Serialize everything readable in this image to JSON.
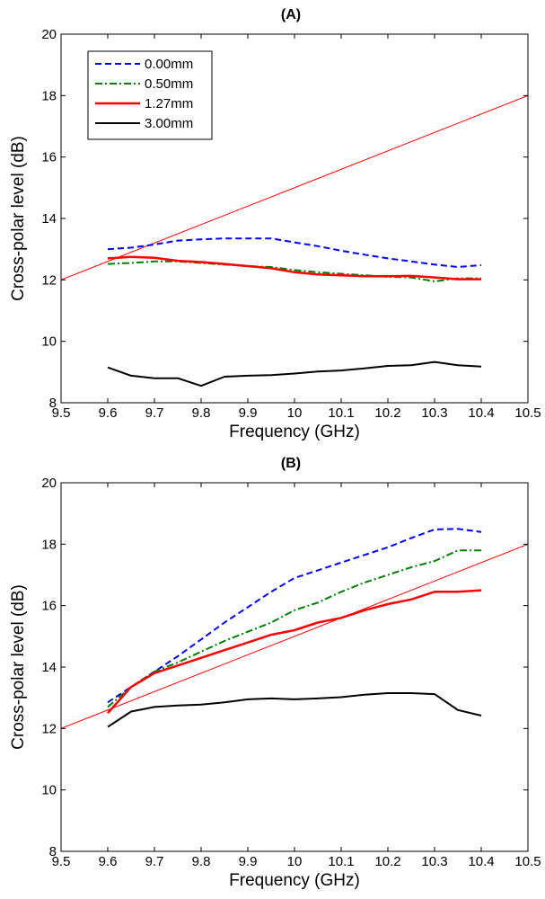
{
  "chart_data": [
    {
      "type": "line",
      "title": "(A)",
      "xlabel": "Frequency (GHz)",
      "ylabel": "Cross-polar level (dB)",
      "xlim": [
        9.5,
        10.5
      ],
      "ylim": [
        8,
        20
      ],
      "xticks": [
        "9.5",
        "9.6",
        "9.7",
        "9.8",
        "9.9",
        "10",
        "10.1",
        "10.2",
        "10.3",
        "10.4",
        "10.5"
      ],
      "yticks": [
        "8",
        "10",
        "12",
        "14",
        "16",
        "18",
        "20"
      ],
      "grid": false,
      "legend_position": "top-left",
      "x": [
        9.6,
        9.65,
        9.7,
        9.75,
        9.8,
        9.85,
        9.9,
        9.95,
        10.0,
        10.05,
        10.1,
        10.15,
        10.2,
        10.25,
        10.3,
        10.35,
        10.4
      ],
      "series": [
        {
          "name": "0.00mm",
          "color": "#0000ff",
          "dash": "dashed",
          "values": [
            13.0,
            13.05,
            13.15,
            13.28,
            13.32,
            13.35,
            13.35,
            13.35,
            13.22,
            13.1,
            12.95,
            12.82,
            12.7,
            12.6,
            12.5,
            12.42,
            12.48
          ]
        },
        {
          "name": "0.50mm",
          "color": "#008000",
          "dash": "dashdot",
          "values": [
            12.52,
            12.55,
            12.6,
            12.6,
            12.55,
            12.5,
            12.45,
            12.42,
            12.32,
            12.25,
            12.2,
            12.15,
            12.1,
            12.08,
            11.95,
            12.05,
            12.05
          ]
        },
        {
          "name": "1.27mm",
          "color": "#ff0000",
          "dash": "solid",
          "values": [
            12.7,
            12.75,
            12.72,
            12.62,
            12.58,
            12.52,
            12.45,
            12.38,
            12.25,
            12.18,
            12.15,
            12.12,
            12.12,
            12.13,
            12.08,
            12.02,
            12.02
          ]
        },
        {
          "name": "3.00mm",
          "color": "#000000",
          "dash": "solid",
          "values": [
            9.15,
            8.88,
            8.8,
            8.8,
            8.55,
            8.85,
            8.88,
            8.9,
            8.95,
            9.02,
            9.05,
            9.12,
            9.2,
            9.22,
            9.33,
            9.22,
            9.18
          ]
        }
      ],
      "reference_line": {
        "color": "#ff0000",
        "x": [
          9.5,
          10.5
        ],
        "y": [
          12,
          18
        ]
      }
    },
    {
      "type": "line",
      "title": "(B)",
      "xlabel": "Frequency (GHz)",
      "ylabel": "Cross-polar level (dB)",
      "xlim": [
        9.5,
        10.5
      ],
      "ylim": [
        8,
        20
      ],
      "xticks": [
        "9.5",
        "9.6",
        "9.7",
        "9.8",
        "9.9",
        "10",
        "10.1",
        "10.2",
        "10.3",
        "10.4",
        "10.5"
      ],
      "yticks": [
        "8",
        "10",
        "12",
        "14",
        "16",
        "18",
        "20"
      ],
      "grid": false,
      "x": [
        9.6,
        9.65,
        9.7,
        9.75,
        9.8,
        9.85,
        9.9,
        9.95,
        10.0,
        10.05,
        10.1,
        10.15,
        10.2,
        10.25,
        10.3,
        10.35,
        10.4
      ],
      "series": [
        {
          "name": "0.00mm",
          "color": "#0000ff",
          "dash": "dashed",
          "values": [
            12.85,
            13.35,
            13.85,
            14.35,
            14.9,
            15.45,
            15.95,
            16.45,
            16.9,
            17.15,
            17.4,
            17.65,
            17.9,
            18.2,
            18.48,
            18.5,
            18.4
          ]
        },
        {
          "name": "0.50mm",
          "color": "#008000",
          "dash": "dashdot",
          "values": [
            12.7,
            13.35,
            13.85,
            14.15,
            14.5,
            14.85,
            15.15,
            15.45,
            15.85,
            16.1,
            16.45,
            16.75,
            17.0,
            17.25,
            17.45,
            17.8,
            17.8
          ]
        },
        {
          "name": "1.27mm",
          "color": "#ff0000",
          "dash": "solid",
          "values": [
            12.5,
            13.35,
            13.8,
            14.05,
            14.3,
            14.55,
            14.8,
            15.05,
            15.2,
            15.45,
            15.6,
            15.85,
            16.05,
            16.2,
            16.45,
            16.45,
            16.5
          ]
        },
        {
          "name": "3.00mm",
          "color": "#000000",
          "dash": "solid",
          "values": [
            12.05,
            12.55,
            12.7,
            12.75,
            12.78,
            12.85,
            12.95,
            12.98,
            12.95,
            12.98,
            13.02,
            13.1,
            13.15,
            13.15,
            13.12,
            12.6,
            12.42
          ]
        }
      ],
      "reference_line": {
        "color": "#ff0000",
        "x": [
          9.5,
          10.5
        ],
        "y": [
          12,
          18
        ]
      }
    }
  ]
}
